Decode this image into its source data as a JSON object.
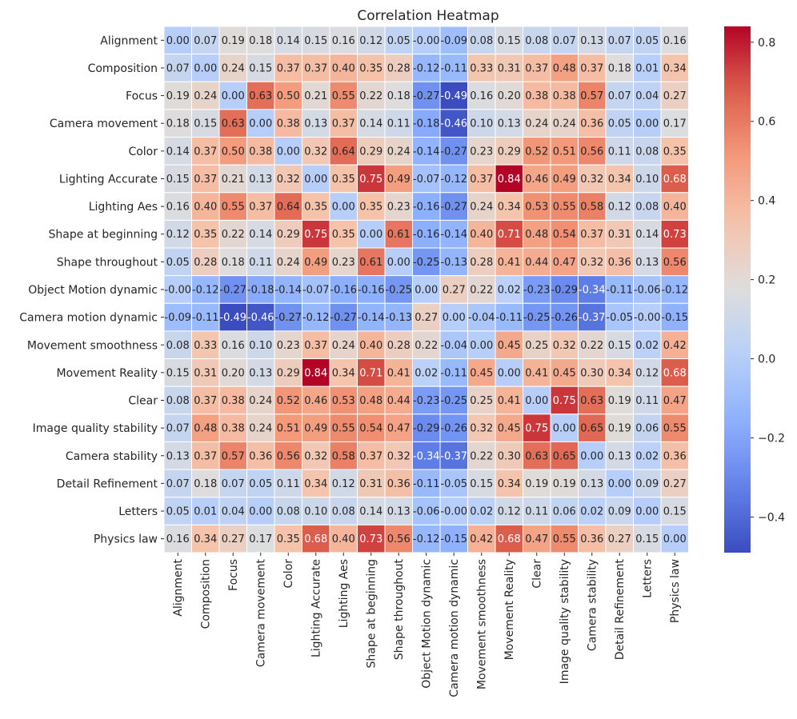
{
  "chart_data": {
    "type": "heatmap",
    "title": "Correlation Heatmap",
    "xlabel": "",
    "ylabel": "",
    "labels": [
      "Alignment",
      "Composition",
      "Focus",
      "Camera movement",
      "Color",
      "Lighting Accurate",
      "Lighting Aes",
      "Shape at beginning",
      "Shape throughout",
      "Object Motion dynamic",
      "Camera motion dynamic",
      "Movement smoothness",
      "Movement Reality",
      "Clear",
      "Image quality stability",
      "Camera stability",
      "Detail Refinement",
      "Letters",
      "Physics law"
    ],
    "values": [
      [
        "0.00",
        "0.07",
        "0.19",
        "0.18",
        "0.14",
        "0.15",
        "0.16",
        "0.12",
        "0.05",
        "-0.00",
        "-0.09",
        "0.08",
        "0.15",
        "0.08",
        "0.07",
        "0.13",
        "0.07",
        "0.05",
        "0.16"
      ],
      [
        "0.07",
        "0.00",
        "0.24",
        "0.15",
        "0.37",
        "0.37",
        "0.40",
        "0.35",
        "0.28",
        "-0.12",
        "-0.11",
        "0.33",
        "0.31",
        "0.37",
        "0.48",
        "0.37",
        "0.18",
        "0.01",
        "0.34"
      ],
      [
        "0.19",
        "0.24",
        "0.00",
        "0.63",
        "0.50",
        "0.21",
        "0.55",
        "0.22",
        "0.18",
        "-0.27",
        "-0.49",
        "0.16",
        "0.20",
        "0.38",
        "0.38",
        "0.57",
        "0.07",
        "0.04",
        "0.27"
      ],
      [
        "0.18",
        "0.15",
        "0.63",
        "0.00",
        "0.38",
        "0.13",
        "0.37",
        "0.14",
        "0.11",
        "-0.18",
        "-0.46",
        "0.10",
        "0.13",
        "0.24",
        "0.24",
        "0.36",
        "0.05",
        "0.00",
        "0.17"
      ],
      [
        "0.14",
        "0.37",
        "0.50",
        "0.38",
        "0.00",
        "0.32",
        "0.64",
        "0.29",
        "0.24",
        "-0.14",
        "-0.27",
        "0.23",
        "0.29",
        "0.52",
        "0.51",
        "0.56",
        "0.11",
        "0.08",
        "0.35"
      ],
      [
        "0.15",
        "0.37",
        "0.21",
        "0.13",
        "0.32",
        "0.00",
        "0.35",
        "0.75",
        "0.49",
        "-0.07",
        "-0.12",
        "0.37",
        "0.84",
        "0.46",
        "0.49",
        "0.32",
        "0.34",
        "0.10",
        "0.68"
      ],
      [
        "0.16",
        "0.40",
        "0.55",
        "0.37",
        "0.64",
        "0.35",
        "0.00",
        "0.35",
        "0.23",
        "-0.16",
        "-0.27",
        "0.24",
        "0.34",
        "0.53",
        "0.55",
        "0.58",
        "0.12",
        "0.08",
        "0.40"
      ],
      [
        "0.12",
        "0.35",
        "0.22",
        "0.14",
        "0.29",
        "0.75",
        "0.35",
        "0.00",
        "0.61",
        "-0.16",
        "-0.14",
        "0.40",
        "0.71",
        "0.48",
        "0.54",
        "0.37",
        "0.31",
        "0.14",
        "0.73"
      ],
      [
        "0.05",
        "0.28",
        "0.18",
        "0.11",
        "0.24",
        "0.49",
        "0.23",
        "0.61",
        "0.00",
        "-0.25",
        "-0.13",
        "0.28",
        "0.41",
        "0.44",
        "0.47",
        "0.32",
        "0.36",
        "0.13",
        "0.56"
      ],
      [
        "-0.00",
        "-0.12",
        "-0.27",
        "-0.18",
        "-0.14",
        "-0.07",
        "-0.16",
        "-0.16",
        "-0.25",
        "0.00",
        "0.27",
        "0.22",
        "0.02",
        "-0.23",
        "-0.29",
        "-0.34",
        "-0.11",
        "-0.06",
        "-0.12"
      ],
      [
        "-0.09",
        "-0.11",
        "-0.49",
        "-0.46",
        "-0.27",
        "-0.12",
        "-0.27",
        "-0.14",
        "-0.13",
        "0.27",
        "0.00",
        "-0.04",
        "-0.11",
        "-0.25",
        "-0.26",
        "-0.37",
        "-0.05",
        "-0.00",
        "-0.15"
      ],
      [
        "0.08",
        "0.33",
        "0.16",
        "0.10",
        "0.23",
        "0.37",
        "0.24",
        "0.40",
        "0.28",
        "0.22",
        "-0.04",
        "0.00",
        "0.45",
        "0.25",
        "0.32",
        "0.22",
        "0.15",
        "0.02",
        "0.42"
      ],
      [
        "0.15",
        "0.31",
        "0.20",
        "0.13",
        "0.29",
        "0.84",
        "0.34",
        "0.71",
        "0.41",
        "0.02",
        "-0.11",
        "0.45",
        "0.00",
        "0.41",
        "0.45",
        "0.30",
        "0.34",
        "0.12",
        "0.68"
      ],
      [
        "0.08",
        "0.37",
        "0.38",
        "0.24",
        "0.52",
        "0.46",
        "0.53",
        "0.48",
        "0.44",
        "-0.23",
        "-0.25",
        "0.25",
        "0.41",
        "0.00",
        "0.75",
        "0.63",
        "0.19",
        "0.11",
        "0.47"
      ],
      [
        "0.07",
        "0.48",
        "0.38",
        "0.24",
        "0.51",
        "0.49",
        "0.55",
        "0.54",
        "0.47",
        "-0.29",
        "-0.26",
        "0.32",
        "0.45",
        "0.75",
        "0.00",
        "0.65",
        "0.19",
        "0.06",
        "0.55"
      ],
      [
        "0.13",
        "0.37",
        "0.57",
        "0.36",
        "0.56",
        "0.32",
        "0.58",
        "0.37",
        "0.32",
        "-0.34",
        "-0.37",
        "0.22",
        "0.30",
        "0.63",
        "0.65",
        "0.00",
        "0.13",
        "0.02",
        "0.36"
      ],
      [
        "0.07",
        "0.18",
        "0.07",
        "0.05",
        "0.11",
        "0.34",
        "0.12",
        "0.31",
        "0.36",
        "-0.11",
        "-0.05",
        "0.15",
        "0.34",
        "0.19",
        "0.19",
        "0.13",
        "0.00",
        "0.09",
        "0.27"
      ],
      [
        "0.05",
        "0.01",
        "0.04",
        "0.00",
        "0.08",
        "0.10",
        "0.08",
        "0.14",
        "0.13",
        "-0.06",
        "-0.00",
        "0.02",
        "0.12",
        "0.11",
        "0.06",
        "0.02",
        "0.09",
        "0.00",
        "0.15"
      ],
      [
        "0.16",
        "0.34",
        "0.27",
        "0.17",
        "0.35",
        "0.68",
        "0.40",
        "0.73",
        "0.56",
        "-0.12",
        "-0.15",
        "0.42",
        "0.68",
        "0.47",
        "0.55",
        "0.36",
        "0.27",
        "0.15",
        "0.00"
      ]
    ],
    "colorbar": {
      "vmin": -0.49,
      "vmax": 0.84,
      "ticks": [
        "0.8",
        "0.6",
        "0.4",
        "0.2",
        "0.0",
        "−0.2",
        "−0.4"
      ],
      "tick_values": [
        0.8,
        0.6,
        0.4,
        0.2,
        0.0,
        -0.2,
        -0.4
      ]
    },
    "colormap": "coolwarm",
    "grid_color": "#ffffff"
  }
}
